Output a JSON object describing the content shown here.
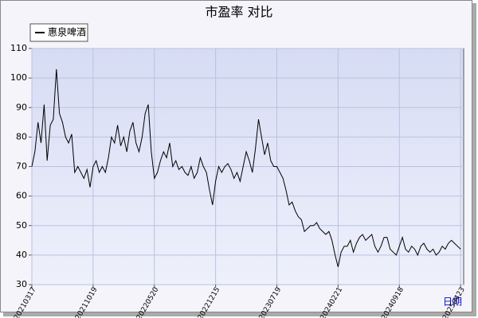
{
  "chart_data": {
    "type": "line",
    "title": "市盈率  对比",
    "x_label": "日期",
    "legend_position": "upper left",
    "grid": true,
    "ylim": [
      30,
      110
    ],
    "yticks": [
      30,
      40,
      50,
      60,
      70,
      80,
      90,
      100,
      110
    ],
    "xlim": [
      0,
      141
    ],
    "xticks": [
      {
        "value": 0,
        "label": "20210317"
      },
      {
        "value": 20,
        "label": "20211019"
      },
      {
        "value": 40,
        "label": "20220520"
      },
      {
        "value": 60,
        "label": "20221215"
      },
      {
        "value": 80,
        "label": "20230719"
      },
      {
        "value": 100,
        "label": "20240221"
      },
      {
        "value": 120,
        "label": "20240918"
      },
      {
        "value": 140,
        "label": "20250423"
      }
    ],
    "series": [
      {
        "name": "惠泉啤酒",
        "color": "#000000",
        "values": [
          70,
          75,
          85,
          78,
          91,
          72,
          84,
          86,
          103,
          88,
          85,
          80,
          78,
          81,
          68,
          70,
          68,
          66,
          69,
          63,
          70,
          72,
          68,
          70,
          68,
          73,
          80,
          78,
          84,
          77,
          80,
          75,
          82,
          85,
          78,
          75,
          80,
          88,
          91,
          75,
          66,
          68,
          72,
          75,
          73,
          78,
          70,
          72,
          69,
          70,
          68,
          67,
          70,
          66,
          68,
          73,
          70,
          68,
          62,
          57,
          65,
          70,
          68,
          70,
          71,
          69,
          66,
          68,
          65,
          70,
          75,
          72,
          68,
          76,
          86,
          80,
          74,
          78,
          72,
          70,
          70,
          68,
          66,
          62,
          57,
          58,
          55,
          53,
          52,
          48,
          49,
          50,
          50,
          51,
          49,
          48,
          47,
          48,
          45,
          40,
          36,
          41,
          43,
          43,
          45,
          41,
          44,
          46,
          47,
          45,
          46,
          47,
          43,
          41,
          43,
          46,
          46,
          42,
          41,
          40,
          43,
          46,
          42,
          41,
          43,
          42,
          40,
          43,
          44,
          42,
          41,
          42,
          40,
          41,
          43,
          42,
          44,
          45,
          44,
          43,
          42
        ]
      }
    ]
  }
}
